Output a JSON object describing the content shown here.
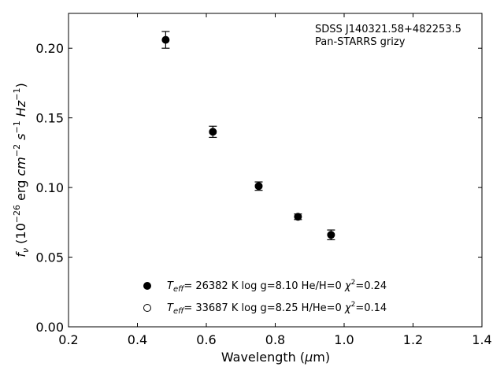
{
  "chart_data": {
    "type": "scatter",
    "xlabel_parts": {
      "text": "Wavelength (",
      "mu": "μ",
      "unit": "m)"
    },
    "ylabel_parts": {
      "fv": "f",
      "nu": "ν",
      "open": " (10",
      "exp1": "−26",
      "mid1": " erg ",
      "cm": "cm",
      "exp2": "−2",
      "s": " s",
      "exp3": "−1",
      "hz": " Hz",
      "exp4": "−1",
      "close": ")"
    },
    "annotation": [
      "SDSS J140321.58+482253.5",
      "Pan-STARRS grizy"
    ],
    "xlim": [
      0.2,
      1.4
    ],
    "ylim": [
      0.0,
      0.225
    ],
    "xticks": [
      0.2,
      0.4,
      0.6,
      0.8,
      1.0,
      1.2,
      1.4
    ],
    "xtick_labels": [
      "0.2",
      "0.4",
      "0.6",
      "0.8",
      "1.0",
      "1.2",
      "1.4"
    ],
    "yticks": [
      0.0,
      0.05,
      0.1,
      0.15,
      0.2
    ],
    "ytick_labels": [
      "0.00",
      "0.05",
      "0.10",
      "0.15",
      "0.20"
    ],
    "grid": false,
    "legend_placement": "bottom-center",
    "series": [
      {
        "marker": "filled-circle",
        "x": [
          0.482,
          0.619,
          0.752,
          0.866,
          0.962
        ],
        "y": [
          0.206,
          0.14,
          0.101,
          0.079,
          0.066
        ],
        "yerr": [
          0.006,
          0.004,
          0.003,
          0.002,
          0.0035
        ]
      }
    ],
    "legend": [
      {
        "marker": "filled-circle",
        "teff": "= 26382 K  log g=8.10  He/H=0  ",
        "chi": "=0.24"
      },
      {
        "marker": "open-circle",
        "teff": "= 33687 K  log g=8.25  H/He=0  ",
        "chi": "=0.14"
      }
    ],
    "legend_symbols": {
      "T": "T",
      "eff": "eff",
      "chi": "χ",
      "two": "2"
    }
  }
}
